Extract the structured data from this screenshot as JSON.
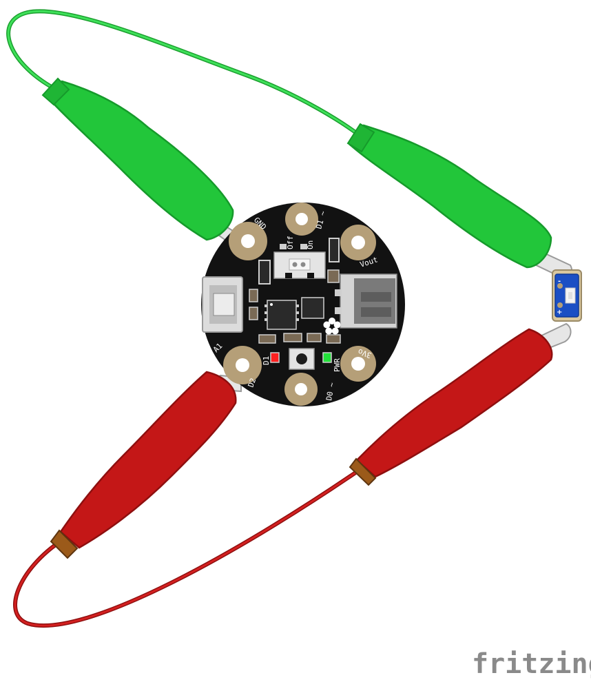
{
  "labels": {
    "gnd": "GND",
    "d1_pad": "D1 ~",
    "off": "Off",
    "on": "On",
    "vout": "Vout",
    "a1": "A1",
    "d2": "D2",
    "d1": "D1",
    "pwr": "PWR",
    "d0": "D0 ~",
    "three_vo": "3Vo"
  },
  "led_board": {
    "minus": "-",
    "plus": "+"
  },
  "watermark": "fritzing",
  "colors": {
    "green_wire": "#22c63a",
    "red_wire": "#c41717",
    "board": "#121212",
    "pad": "#b59f78",
    "led_pcb": "#1b4fc4"
  }
}
